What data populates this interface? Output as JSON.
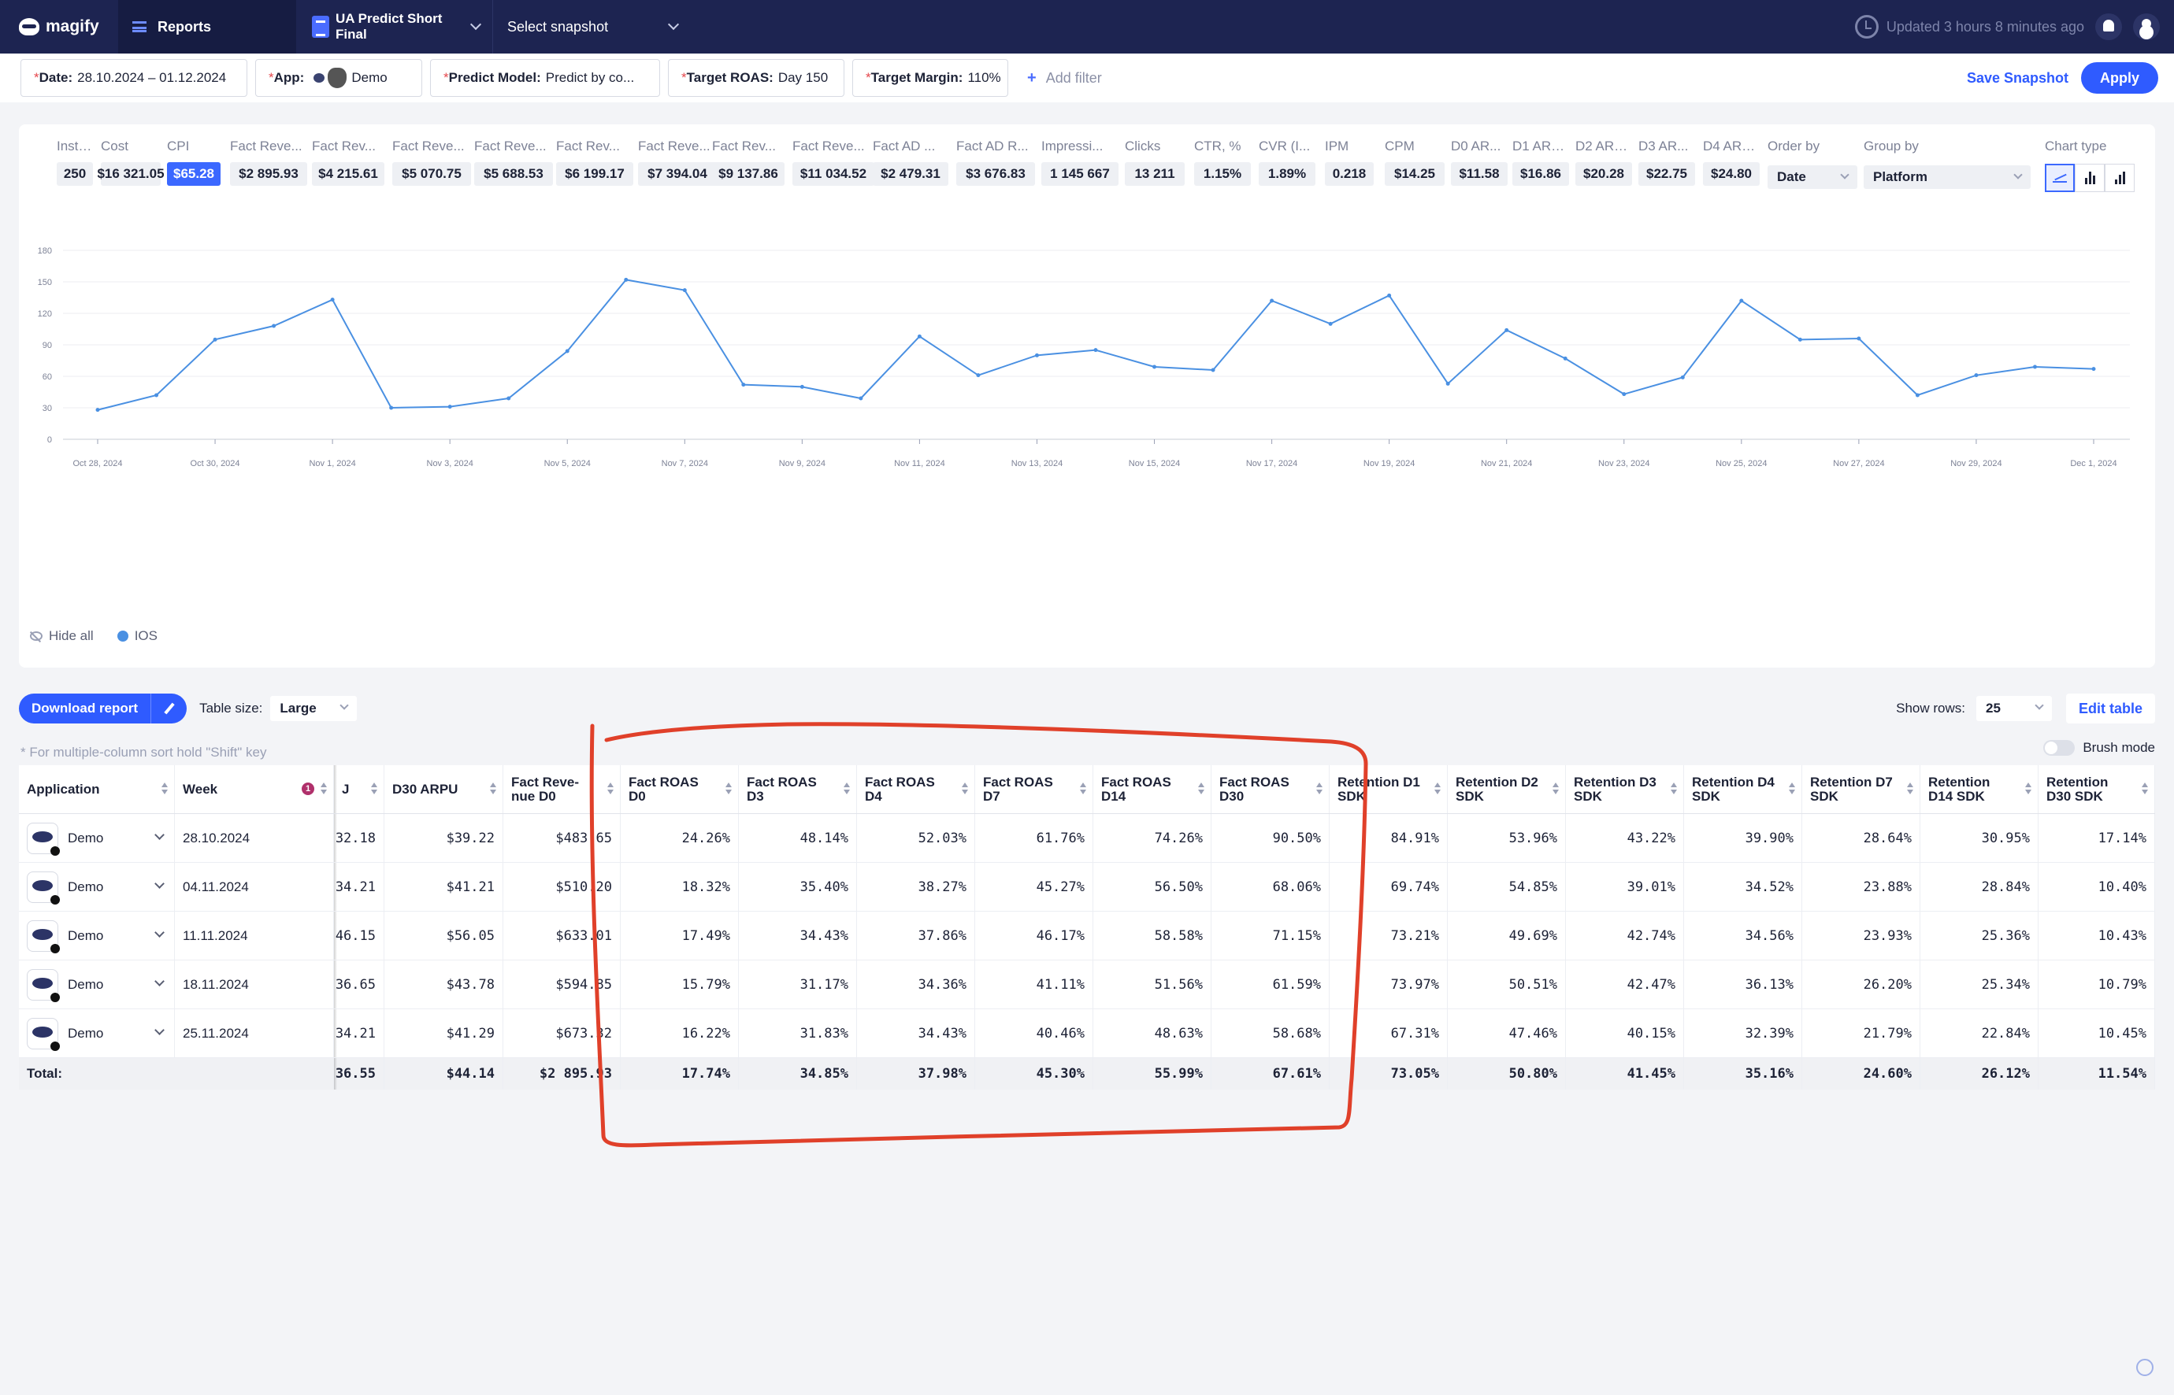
{
  "topbar": {
    "brand": "magify",
    "reports": "Reports",
    "project": "UA Predict Short Final",
    "snapshot": "Select snapshot",
    "updated": "Updated 3 hours 8 minutes ago"
  },
  "filters": {
    "date_label": "Date:",
    "date_value": "28.10.2024 – 01.12.2024",
    "app_label": "App:",
    "app_value": "Demo",
    "model_label": "Predict Model:",
    "model_value": "Predict by co...",
    "roas_label": "Target ROAS:",
    "roas_value": "Day 150",
    "margin_label": "Target Margin:",
    "margin_value": "110%",
    "add_filter": "Add filter",
    "save_snapshot": "Save Snapshot",
    "apply": "Apply"
  },
  "metrics": [
    {
      "label": "Installs",
      "value": "250"
    },
    {
      "label": "Cost",
      "value": "$16 321.05"
    },
    {
      "label": "CPI",
      "value": "$65.28"
    },
    {
      "label": "Fact Reve...",
      "value": "$2 895.93"
    },
    {
      "label": "Fact Rev...",
      "value": "$4 215.61"
    },
    {
      "label": "Fact Reve...",
      "value": "$5 070.75"
    },
    {
      "label": "Fact Reve...",
      "value": "$5 688.53"
    },
    {
      "label": "Fact Rev...",
      "value": "$6 199.17"
    },
    {
      "label": "Fact Reve...",
      "value": "$7 394.04"
    },
    {
      "label": "Fact Rev...",
      "value": "$9 137.86"
    },
    {
      "label": "Fact Reve...",
      "value": "$11 034.52"
    },
    {
      "label": "Fact AD ...",
      "value": "$2 479.31"
    },
    {
      "label": "Fact AD R...",
      "value": "$3 676.83"
    },
    {
      "label": "Impressi...",
      "value": "1 145 667"
    },
    {
      "label": "Clicks",
      "value": "13 211"
    },
    {
      "label": "CTR, %",
      "value": "1.15%"
    },
    {
      "label": "CVR (I...",
      "value": "1.89%"
    },
    {
      "label": "IPM",
      "value": "0.218"
    },
    {
      "label": "CPM",
      "value": "$14.25"
    },
    {
      "label": "D0 AR...",
      "value": "$11.58"
    },
    {
      "label": "D1 ARPU",
      "value": "$16.86"
    },
    {
      "label": "D2 ARPU",
      "value": "$20.28"
    },
    {
      "label": "D3 AR...",
      "value": "$22.75"
    },
    {
      "label": "D4 ARPU",
      "value": "$24.80"
    }
  ],
  "controls": {
    "order_by_label": "Order by",
    "order_by_value": "Date",
    "group_by_label": "Group by",
    "group_by_value": "Platform",
    "chart_type_label": "Chart type"
  },
  "chart_data": {
    "type": "line",
    "title": "",
    "xlabel": "",
    "ylabel": "",
    "ylim": [
      0,
      180
    ],
    "yticks": [
      0,
      30,
      60,
      90,
      120,
      150,
      180
    ],
    "grid": true,
    "x_tick_labels": [
      "Oct 28, 2024",
      "Oct 30, 2024",
      "Nov 1, 2024",
      "Nov 3, 2024",
      "Nov 5, 2024",
      "Nov 7, 2024",
      "Nov 9, 2024",
      "Nov 11, 2024",
      "Nov 13, 2024",
      "Nov 15, 2024",
      "Nov 17, 2024",
      "Nov 19, 2024",
      "Nov 21, 2024",
      "Nov 23, 2024",
      "Nov 25, 2024",
      "Nov 27, 2024",
      "Nov 29, 2024",
      "Dec 1, 2024"
    ],
    "x": [
      "Oct 28, 2024",
      "Oct 29, 2024",
      "Oct 30, 2024",
      "Oct 31, 2024",
      "Nov 1, 2024",
      "Nov 2, 2024",
      "Nov 3, 2024",
      "Nov 4, 2024",
      "Nov 5, 2024",
      "Nov 6, 2024",
      "Nov 7, 2024",
      "Nov 8, 2024",
      "Nov 9, 2024",
      "Nov 10, 2024",
      "Nov 11, 2024",
      "Nov 12, 2024",
      "Nov 13, 2024",
      "Nov 14, 2024",
      "Nov 15, 2024",
      "Nov 16, 2024",
      "Nov 17, 2024",
      "Nov 18, 2024",
      "Nov 19, 2024",
      "Nov 20, 2024",
      "Nov 21, 2024",
      "Nov 22, 2024",
      "Nov 23, 2024",
      "Nov 24, 2024",
      "Nov 25, 2024",
      "Nov 26, 2024",
      "Nov 27, 2024",
      "Nov 28, 2024",
      "Nov 29, 2024",
      "Nov 30, 2024",
      "Dec 1, 2024"
    ],
    "series": [
      {
        "name": "IOS",
        "color": "#4a90e2",
        "values": [
          28,
          42,
          95,
          108,
          133,
          30,
          31,
          39,
          84,
          152,
          142,
          52,
          50,
          39,
          98,
          61,
          80,
          85,
          69,
          66,
          132,
          110,
          137,
          53,
          104,
          77,
          43,
          59,
          132,
          95,
          96,
          42,
          61,
          69,
          67
        ]
      }
    ],
    "legend": {
      "hide_all": "Hide all"
    }
  },
  "table_controls": {
    "download": "Download report",
    "table_size_label": "Table size:",
    "table_size_value": "Large",
    "show_rows_label": "Show rows:",
    "show_rows_value": "25",
    "edit_table": "Edit table",
    "hint": "* For multiple-column sort hold \"Shift\" key",
    "brush_mode": "Brush mode"
  },
  "table": {
    "headers": [
      "Application",
      "Week",
      "J",
      "D30 ARPU",
      "Fact Reve-nue D0",
      "Fact ROAS D0",
      "Fact ROAS D3",
      "Fact ROAS D4",
      "Fact ROAS D7",
      "Fact ROAS D14",
      "Fact ROAS D30",
      "Retention D1 SDK",
      "Retention D2 SDK",
      "Retention D3 SDK",
      "Retention D4 SDK",
      "Retention D7 SDK",
      "Retention D14 SDK",
      "Retention D30 SDK"
    ],
    "week_sort_badge": "1",
    "rows": [
      {
        "app": "Demo",
        "week": "28.10.2024",
        "cells": [
          "32.18",
          "$39.22",
          "$483.65",
          "24.26%",
          "48.14%",
          "52.03%",
          "61.76%",
          "74.26%",
          "90.50%",
          "84.91%",
          "53.96%",
          "43.22%",
          "39.90%",
          "28.64%",
          "30.95%",
          "17.14%"
        ]
      },
      {
        "app": "Demo",
        "week": "04.11.2024",
        "cells": [
          "34.21",
          "$41.21",
          "$510.20",
          "18.32%",
          "35.40%",
          "38.27%",
          "45.27%",
          "56.50%",
          "68.06%",
          "69.74%",
          "54.85%",
          "39.01%",
          "34.52%",
          "23.88%",
          "28.84%",
          "10.40%"
        ]
      },
      {
        "app": "Demo",
        "week": "11.11.2024",
        "cells": [
          "46.15",
          "$56.05",
          "$633.01",
          "17.49%",
          "34.43%",
          "37.86%",
          "46.17%",
          "58.58%",
          "71.15%",
          "73.21%",
          "49.69%",
          "42.74%",
          "34.56%",
          "23.93%",
          "25.36%",
          "10.43%"
        ]
      },
      {
        "app": "Demo",
        "week": "18.11.2024",
        "cells": [
          "36.65",
          "$43.78",
          "$594.85",
          "15.79%",
          "31.17%",
          "34.36%",
          "41.11%",
          "51.56%",
          "61.59%",
          "73.97%",
          "50.51%",
          "42.47%",
          "36.13%",
          "26.20%",
          "25.34%",
          "10.79%"
        ]
      },
      {
        "app": "Demo",
        "week": "25.11.2024",
        "cells": [
          "34.21",
          "$41.29",
          "$673.32",
          "16.22%",
          "31.83%",
          "34.43%",
          "40.46%",
          "48.63%",
          "58.68%",
          "67.31%",
          "47.46%",
          "40.15%",
          "32.39%",
          "21.79%",
          "22.84%",
          "10.45%"
        ]
      }
    ],
    "total_label": "Total:",
    "total": [
      "36.55",
      "$44.14",
      "$2 895.93",
      "17.74%",
      "34.85%",
      "37.98%",
      "45.30%",
      "55.99%",
      "67.61%",
      "73.05%",
      "50.80%",
      "41.45%",
      "35.16%",
      "24.60%",
      "26.12%",
      "11.54%"
    ]
  },
  "colors": {
    "accent": "#2f5bff",
    "topbar": "#1d2451",
    "series": "#4a90e2",
    "annotation": "#e0402a"
  }
}
